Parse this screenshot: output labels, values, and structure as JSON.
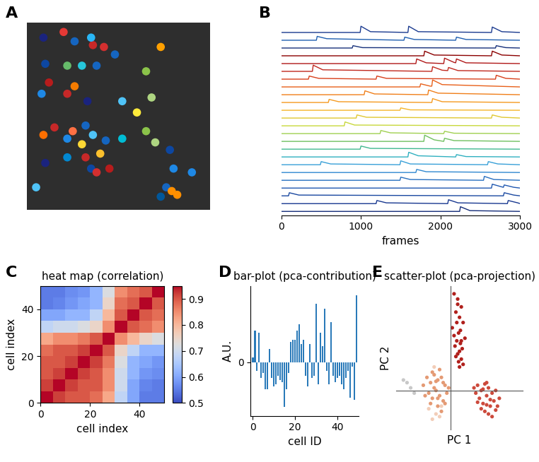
{
  "chart_data": [
    {
      "panel_label": "A",
      "type": "image",
      "tick_labels": false,
      "xlim": [
        0,
        100
      ],
      "ylim": [
        0,
        100
      ],
      "x": [
        9,
        20,
        26,
        36,
        42,
        35,
        48,
        73,
        10,
        22,
        30,
        38,
        12,
        26,
        22,
        8,
        33,
        68,
        65,
        52,
        60,
        15,
        25,
        32,
        9,
        22,
        30,
        36,
        43,
        40,
        10,
        32,
        35,
        38,
        45,
        22,
        52,
        65,
        70,
        78,
        80,
        76,
        79,
        73,
        90,
        5,
        82
      ],
      "values": [
        92,
        95,
        90,
        88,
        87,
        92,
        83,
        87,
        78,
        77,
        77,
        77,
        68,
        66,
        62,
        62,
        58,
        60,
        74,
        58,
        52,
        44,
        42,
        45,
        40,
        38,
        35,
        40,
        37,
        30,
        25,
        28,
        22,
        20,
        22,
        28,
        38,
        42,
        36,
        32,
        22,
        12,
        10,
        7,
        20,
        12,
        8
      ],
      "colors": [
        "#1a237e",
        "#e53935",
        "#1565c0",
        "#c62828",
        "#d32f2f",
        "#29b6f6",
        "#1565c0",
        "#ffa000",
        "#0d47a1",
        "#66bb6a",
        "#26c6da",
        "#1565c0",
        "#b71c1c",
        "#f57c00",
        "#c62828",
        "#1e88e5",
        "#1a237e",
        "#aed581",
        "#8bc34a",
        "#4fc3f7",
        "#ffeb3b",
        "#c62828",
        "#ff7043",
        "#1565c0",
        "#ff6f00",
        "#1e88e5",
        "#fdd835",
        "#4fc3f7",
        "#1565c0",
        "#fbc02d",
        "#1a237e",
        "#c62828",
        "#0d47a1",
        "#d32f2f",
        "#b71c1c",
        "#0288d1",
        "#00bcd4",
        "#8bc34a",
        "#aed581",
        "#0d47a1",
        "#1e88e5",
        "#1565c0",
        "#ff8f00",
        "#01579b",
        "#1e88e5",
        "#4fc3f7",
        "#ff8f00"
      ]
    },
    {
      "panel_label": "B",
      "type": "line",
      "x_label": "frames",
      "tick_labels": "x",
      "xlim": [
        0,
        3000
      ],
      "xticks": [
        0,
        1000,
        2000,
        3000
      ],
      "series": [
        {
          "color": "#1a3a8f",
          "x": [
            0,
            990,
            1000,
            1120,
            1590,
            1600,
            1720,
            2640,
            2650,
            2770,
            3000
          ],
          "values": [
            0,
            0,
            0.8,
            0.1,
            0,
            0.8,
            0.1,
            0,
            0.7,
            0.1,
            0
          ]
        },
        {
          "color": "#1f5fb0",
          "x": [
            0,
            440,
            450,
            570,
            1540,
            1550,
            1670,
            2190,
            2200,
            2320,
            3000
          ],
          "values": [
            0,
            0,
            0.5,
            0.2,
            0,
            0.4,
            0.1,
            0,
            0.4,
            0.1,
            0
          ]
        },
        {
          "color": "#16307a",
          "x": [
            0,
            890,
            900,
            1020,
            2690,
            2700,
            2820,
            3000
          ],
          "values": [
            0,
            0,
            0.3,
            0.05,
            0,
            0.3,
            0.05,
            0
          ]
        },
        {
          "color": "#8b0000",
          "x": [
            0,
            1790,
            1800,
            1920,
            2640,
            2650,
            2770,
            3000
          ],
          "values": [
            0,
            0,
            0.6,
            0.1,
            0,
            0.6,
            0.1,
            0
          ]
        },
        {
          "color": "#b01818",
          "x": [
            0,
            1690,
            1700,
            1820,
            2040,
            2050,
            2170,
            2190,
            2200,
            2320,
            3000
          ],
          "values": [
            0,
            0,
            0.6,
            0.1,
            0,
            0.7,
            0.15,
            0.1,
            0.6,
            0.1,
            0
          ]
        },
        {
          "color": "#c0281e",
          "x": [
            0,
            390,
            400,
            520,
            1890,
            1900,
            2020,
            2090,
            2100,
            2220,
            3000
          ],
          "values": [
            0,
            0,
            0.8,
            0.2,
            0,
            0.6,
            0.15,
            0.1,
            0.5,
            0.1,
            0
          ]
        },
        {
          "color": "#d8401c",
          "x": [
            0,
            340,
            350,
            470,
            1190,
            1200,
            1320,
            2690,
            2700,
            2820,
            3000
          ],
          "values": [
            0,
            0,
            0.4,
            0.1,
            0,
            0.4,
            0.1,
            0,
            0.5,
            0.1,
            0
          ]
        },
        {
          "color": "#e8601a",
          "x": [
            0,
            1740,
            1750,
            1870,
            1890,
            1900,
            2020,
            3000
          ],
          "values": [
            0,
            0,
            0.4,
            0.1,
            0.1,
            0.9,
            0.3,
            0
          ]
        },
        {
          "color": "#f07f1a",
          "x": [
            0,
            1040,
            1050,
            1170,
            1840,
            1850,
            1970,
            3000
          ],
          "values": [
            0,
            0,
            0.5,
            0.1,
            0,
            0.6,
            0.2,
            0
          ]
        },
        {
          "color": "#f59a20",
          "x": [
            0,
            590,
            600,
            720,
            1890,
            1900,
            2020,
            3000
          ],
          "values": [
            0,
            0,
            0.4,
            0.1,
            0,
            0.5,
            0.1,
            0
          ]
        },
        {
          "color": "#f5b52a",
          "x": [
            0,
            1490,
            1500,
            1620,
            3000
          ],
          "values": [
            0,
            0,
            0.3,
            0.05,
            0
          ]
        },
        {
          "color": "#e0c832",
          "x": [
            0,
            940,
            950,
            1070,
            2640,
            2650,
            2770,
            3000
          ],
          "values": [
            0,
            0,
            0.4,
            0.1,
            0,
            0.4,
            0.1,
            0
          ]
        },
        {
          "color": "#c8d83c",
          "x": [
            0,
            790,
            800,
            920,
            3000
          ],
          "values": [
            0,
            0,
            0.5,
            0.1,
            0
          ]
        },
        {
          "color": "#a0d050",
          "x": [
            0,
            1240,
            1250,
            1370,
            2040,
            2050,
            2170,
            3000
          ],
          "values": [
            0,
            0,
            0.4,
            0.1,
            0,
            0.3,
            0.05,
            0
          ]
        },
        {
          "color": "#70c060",
          "x": [
            0,
            1790,
            1800,
            1920,
            2040,
            2050,
            2170,
            3000
          ],
          "values": [
            0,
            0,
            0.8,
            0.2,
            0,
            0.4,
            0.1,
            0
          ]
        },
        {
          "color": "#40b890",
          "x": [
            0,
            990,
            1000,
            1120,
            3000
          ],
          "values": [
            0,
            0,
            0.4,
            0.1,
            0
          ]
        },
        {
          "color": "#30b0c0",
          "x": [
            0,
            1590,
            1600,
            1720,
            2190,
            2200,
            2320,
            3000
          ],
          "values": [
            0,
            0,
            0.6,
            0.15,
            0,
            0.3,
            0.05,
            0
          ]
        },
        {
          "color": "#38a0d8",
          "x": [
            0,
            490,
            500,
            620,
            1490,
            1500,
            1620,
            2590,
            2600,
            2720,
            3000
          ],
          "values": [
            0,
            0,
            0.4,
            0.1,
            0,
            0.5,
            0.1,
            0,
            0.4,
            0.1,
            0
          ]
        },
        {
          "color": "#3088d0",
          "x": [
            0,
            1690,
            1700,
            1820,
            3000
          ],
          "values": [
            0,
            0,
            0.4,
            0.1,
            0
          ]
        },
        {
          "color": "#2870c0",
          "x": [
            0,
            1490,
            1500,
            1620,
            2540,
            2550,
            2670,
            3000
          ],
          "values": [
            0,
            0,
            0.4,
            0.1,
            0,
            0.5,
            0.1,
            0
          ]
        },
        {
          "color": "#2058b0",
          "x": [
            0,
            2640,
            2650,
            2770,
            2790,
            2800,
            2920,
            3000
          ],
          "values": [
            0,
            0,
            0.5,
            0.15,
            0.1,
            0.4,
            0.1,
            0
          ]
        },
        {
          "color": "#1a48a0",
          "x": [
            0,
            90,
            100,
            220,
            2790,
            2800,
            2920,
            3000
          ],
          "values": [
            0,
            0,
            0.4,
            0.1,
            0,
            0.4,
            0.1,
            0
          ]
        },
        {
          "color": "#183890",
          "x": [
            0,
            1190,
            1200,
            1320,
            2090,
            2100,
            2220,
            2840,
            2850,
            2970,
            3000
          ],
          "values": [
            0,
            0,
            0.4,
            0.1,
            0,
            0.5,
            0.1,
            0,
            0.4,
            0.1,
            0
          ]
        },
        {
          "color": "#142c78",
          "x": [
            0,
            2240,
            2250,
            2370,
            3000
          ],
          "values": [
            0,
            0,
            0.6,
            0.1,
            0
          ]
        }
      ]
    },
    {
      "panel_label": "C",
      "type": "heatmap",
      "title": "heat map (correlation)",
      "x_label": "cell index",
      "y_label": "cell index",
      "xlim": [
        0,
        50
      ],
      "ylim": [
        0,
        50
      ],
      "xticks": [
        0,
        20,
        40
      ],
      "yticks": [
        0,
        20,
        40
      ],
      "colorbar_range": [
        0.5,
        0.95
      ],
      "colorbar_ticks": [
        0.5,
        0.6,
        0.7,
        0.8,
        0.9
      ],
      "cells": [
        [
          0.95,
          0.92,
          0.9,
          0.9,
          0.88,
          0.82,
          0.68,
          0.6,
          0.55,
          0.55
        ],
        [
          0.92,
          0.95,
          0.92,
          0.9,
          0.9,
          0.85,
          0.7,
          0.6,
          0.56,
          0.55
        ],
        [
          0.9,
          0.92,
          0.95,
          0.92,
          0.9,
          0.85,
          0.7,
          0.62,
          0.58,
          0.57
        ],
        [
          0.9,
          0.9,
          0.92,
          0.95,
          0.92,
          0.87,
          0.72,
          0.62,
          0.6,
          0.58
        ],
        [
          0.88,
          0.9,
          0.9,
          0.92,
          0.95,
          0.9,
          0.75,
          0.68,
          0.62,
          0.62
        ],
        [
          0.82,
          0.85,
          0.85,
          0.87,
          0.9,
          0.95,
          0.85,
          0.8,
          0.75,
          0.72
        ],
        [
          0.68,
          0.7,
          0.7,
          0.72,
          0.75,
          0.85,
          0.95,
          0.9,
          0.88,
          0.85
        ],
        [
          0.6,
          0.6,
          0.62,
          0.62,
          0.68,
          0.8,
          0.9,
          0.95,
          0.9,
          0.88
        ],
        [
          0.55,
          0.56,
          0.58,
          0.6,
          0.62,
          0.75,
          0.88,
          0.9,
          0.95,
          0.9
        ],
        [
          0.55,
          0.55,
          0.57,
          0.58,
          0.62,
          0.72,
          0.85,
          0.88,
          0.9,
          0.95
        ]
      ]
    },
    {
      "panel_label": "D",
      "type": "bar",
      "title": "bar-plot (pca-contribution)",
      "x_label": "cell ID",
      "y_label": "A.U.",
      "color": "#2a7ab9",
      "xlim": [
        -1,
        50
      ],
      "xticks": [
        0,
        20,
        40
      ],
      "ylim": [
        -1.2,
        1.7
      ],
      "yticks": [
        0
      ],
      "values": [
        0.1,
        0.7,
        -0.2,
        0.65,
        -0.35,
        -0.25,
        -0.6,
        -0.6,
        0.3,
        -0.35,
        -0.55,
        -0.5,
        -0.3,
        -0.4,
        -0.45,
        -1.0,
        -0.6,
        -0.25,
        0.45,
        0.5,
        0.5,
        0.7,
        0.85,
        0.4,
        0.5,
        -0.3,
        -0.55,
        0.4,
        -0.35,
        -0.3,
        1.3,
        -0.5,
        0.65,
        0.35,
        1.2,
        -0.2,
        -0.5,
        0.9,
        -0.3,
        -0.45,
        -0.35,
        -0.3,
        -0.5,
        -0.6,
        -0.35,
        -0.2,
        -0.8,
        -0.1,
        -0.85,
        1.5
      ]
    },
    {
      "panel_label": "E",
      "type": "scatter",
      "title": "scatter-plot (pca-projection)",
      "x_label": "PC 1",
      "y_label": "PC 2",
      "tick_labels": false,
      "xlim": [
        -3,
        4
      ],
      "ylim": [
        -1.5,
        4
      ],
      "series": [
        {
          "color": "#c8c8c8",
          "x": [
            -2.4,
            -2.2,
            -2.6,
            -2.0
          ],
          "values": [
            0.3,
            0.1,
            0.4,
            -0.1
          ]
        },
        {
          "color": "#f2cdb8",
          "x": [
            -1.2,
            -0.8,
            -0.6,
            -1.0,
            -0.5,
            -0.9
          ],
          "values": [
            -0.7,
            -0.9,
            -1.0,
            -1.1,
            -0.6,
            0.9
          ]
        },
        {
          "color": "#e49a74",
          "x": [
            -1.5,
            -1.3,
            -1.1,
            -0.9,
            -0.7,
            -0.5,
            -0.3,
            -0.1,
            -1.2,
            -1.0,
            -0.8,
            -0.6,
            -0.4,
            -0.2,
            -1.4,
            -0.9,
            -0.7,
            -0.5,
            -1.0,
            -0.6,
            -0.8,
            -1.1,
            -0.4,
            -0.3,
            -0.7
          ],
          "values": [
            0.2,
            0.5,
            0.3,
            0.6,
            0.4,
            0.5,
            0.2,
            0.1,
            -0.1,
            -0.3,
            0.0,
            -0.2,
            -0.4,
            -0.1,
            -0.2,
            0.1,
            -0.6,
            -0.8,
            0.7,
            0.8,
            0.35,
            -0.5,
            0.3,
            -0.5,
            -0.3
          ]
        },
        {
          "color": "#cc4a3c",
          "x": [
            1.3,
            1.5,
            1.7,
            1.9,
            2.1,
            2.3,
            2.5,
            2.7,
            1.6,
            1.8,
            2.0,
            2.2,
            2.4,
            1.4,
            1.9,
            2.1,
            2.6,
            1.7,
            2.0,
            2.3,
            1.8,
            2.2,
            1.5,
            2.5,
            2.0
          ],
          "values": [
            0.1,
            0.2,
            0.0,
            0.25,
            0.1,
            -0.1,
            0.0,
            -0.3,
            -0.3,
            -0.5,
            -0.2,
            -0.6,
            -0.4,
            -0.1,
            -0.8,
            -0.9,
            -0.6,
            -0.7,
            0.3,
            -1.0,
            0.05,
            -0.35,
            -0.45,
            -0.75,
            -0.55
          ]
        },
        {
          "color": "#b0201c",
          "x": [
            0.2,
            0.4,
            0.6,
            0.3,
            0.5,
            0.7,
            0.1,
            0.45,
            0.8,
            0.35,
            0.55,
            0.25,
            0.65,
            0.5,
            0.4,
            0.3,
            0.6,
            0.45,
            0.2,
            0.7,
            0.5,
            0.35,
            0.55,
            0.4,
            0.6
          ],
          "values": [
            3.7,
            3.5,
            3.2,
            3.0,
            2.8,
            2.6,
            2.4,
            2.2,
            2.0,
            1.9,
            1.8,
            1.7,
            1.6,
            1.5,
            1.4,
            1.3,
            1.2,
            1.1,
            2.1,
            1.0,
            0.9,
            2.6,
            2.3,
            3.3,
            1.9
          ]
        }
      ]
    }
  ]
}
